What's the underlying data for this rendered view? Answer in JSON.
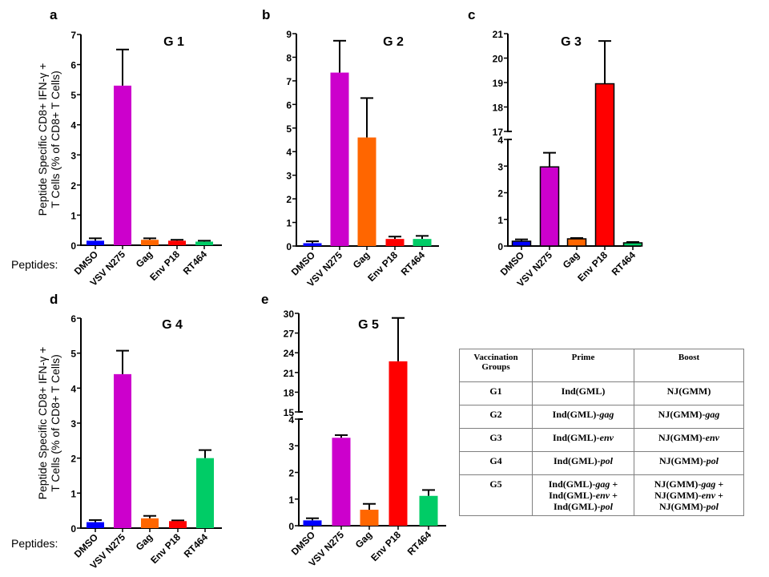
{
  "chart_data": [
    {
      "type": "bar",
      "panel": "a",
      "title": "G 1",
      "xlabel": "Peptides:",
      "ylabel": "Peptide Specific CD8+ IFN-γ + T Cells (% of CD8+ T Cells)",
      "categories": [
        "DMSO",
        "VSV N275",
        "Gag",
        "Env P18",
        "RT464"
      ],
      "values": [
        0.15,
        5.3,
        0.18,
        0.15,
        0.12
      ],
      "error_upper": [
        0.23,
        6.5,
        0.23,
        0.18,
        0.15
      ],
      "ylim": [
        0,
        7
      ],
      "yticks": [
        0,
        1,
        2,
        3,
        4,
        5,
        6,
        7
      ],
      "axis_break": null,
      "outlined": false
    },
    {
      "type": "bar",
      "panel": "b",
      "title": "G 2",
      "xlabel": "",
      "ylabel": "",
      "categories": [
        "DMSO",
        "VSV N275",
        "Gag",
        "Env P18",
        "RT464"
      ],
      "values": [
        0.12,
        7.35,
        4.6,
        0.3,
        0.3
      ],
      "error_upper": [
        0.2,
        8.7,
        6.27,
        0.4,
        0.43
      ],
      "ylim": [
        0,
        9
      ],
      "yticks": [
        0,
        1,
        2,
        3,
        4,
        5,
        6,
        7,
        8,
        9
      ],
      "axis_break": null,
      "outlined": false
    },
    {
      "type": "bar",
      "panel": "c",
      "title": "G 3",
      "xlabel": "",
      "ylabel": "",
      "categories": [
        "DMSO",
        "VSV N275",
        "Gag",
        "Env P18",
        "RT464"
      ],
      "values": [
        0.18,
        2.97,
        0.27,
        18.95,
        0.12
      ],
      "error_upper": [
        0.25,
        3.5,
        0.3,
        20.7,
        0.15
      ],
      "ylim": [
        0,
        21
      ],
      "yticks": [
        0,
        1,
        2,
        3,
        4,
        17,
        18,
        19,
        20,
        21
      ],
      "axis_break": {
        "lower": [
          0,
          4
        ],
        "upper": [
          17,
          21
        ]
      },
      "outlined": true
    },
    {
      "type": "bar",
      "panel": "d",
      "title": "G 4",
      "xlabel": "Peptides:",
      "ylabel": "Peptide Specific CD8+ IFN-γ + T Cells (% of CD8+ T Cells)",
      "categories": [
        "DMSO",
        "VSV N275",
        "Gag",
        "Env P18",
        "RT464"
      ],
      "values": [
        0.17,
        4.4,
        0.28,
        0.2,
        2.0
      ],
      "error_upper": [
        0.23,
        5.07,
        0.35,
        0.22,
        2.23
      ],
      "ylim": [
        0,
        6
      ],
      "yticks": [
        0,
        1,
        2,
        3,
        4,
        5,
        6
      ],
      "axis_break": null,
      "outlined": false
    },
    {
      "type": "bar",
      "panel": "e",
      "title": "G 5",
      "xlabel": "",
      "ylabel": "",
      "categories": [
        "DMSO",
        "VSV N275",
        "Gag",
        "Env P18",
        "RT464"
      ],
      "values": [
        0.2,
        3.3,
        0.6,
        22.7,
        1.12
      ],
      "error_upper": [
        0.28,
        3.4,
        0.82,
        29.3,
        1.34
      ],
      "ylim": [
        0,
        30
      ],
      "yticks": [
        0,
        1,
        2,
        3,
        4,
        15,
        18,
        21,
        24,
        27,
        30
      ],
      "axis_break": {
        "lower": [
          0,
          4
        ],
        "upper": [
          15,
          30
        ]
      },
      "outlined": false
    }
  ],
  "bar_colors": [
    "#0000ff",
    "#cc00cc",
    "#ff6600",
    "#ff0000",
    "#00cc66"
  ],
  "table": {
    "headers": [
      "Vaccination Groups",
      "Prime",
      "Boost"
    ],
    "rows": [
      {
        "group": "G1",
        "prime": [
          [
            "Ind(GML)",
            ""
          ]
        ],
        "boost": [
          [
            "NJ(GMM)",
            ""
          ]
        ]
      },
      {
        "group": "G2",
        "prime": [
          [
            "Ind(GML)-",
            "gag"
          ]
        ],
        "boost": [
          [
            "NJ(GMM)-",
            "gag"
          ]
        ]
      },
      {
        "group": "G3",
        "prime": [
          [
            "Ind(GML)-",
            "env"
          ]
        ],
        "boost": [
          [
            "NJ(GMM)-",
            "env"
          ]
        ]
      },
      {
        "group": "G4",
        "prime": [
          [
            "Ind(GML)-",
            "pol"
          ]
        ],
        "boost": [
          [
            "NJ(GMM)-",
            "pol"
          ]
        ]
      },
      {
        "group": "G5",
        "prime": [
          [
            "Ind(GML)-",
            "gag",
            " +"
          ],
          [
            "Ind(GML)-",
            "env",
            " +"
          ],
          [
            "Ind(GML)-",
            "pol"
          ]
        ],
        "boost": [
          [
            "NJ(GMM)-",
            "gag",
            " +"
          ],
          [
            "NJ(GMM)-",
            "env",
            " +"
          ],
          [
            "NJ(GMM)-",
            "pol"
          ]
        ]
      }
    ]
  }
}
